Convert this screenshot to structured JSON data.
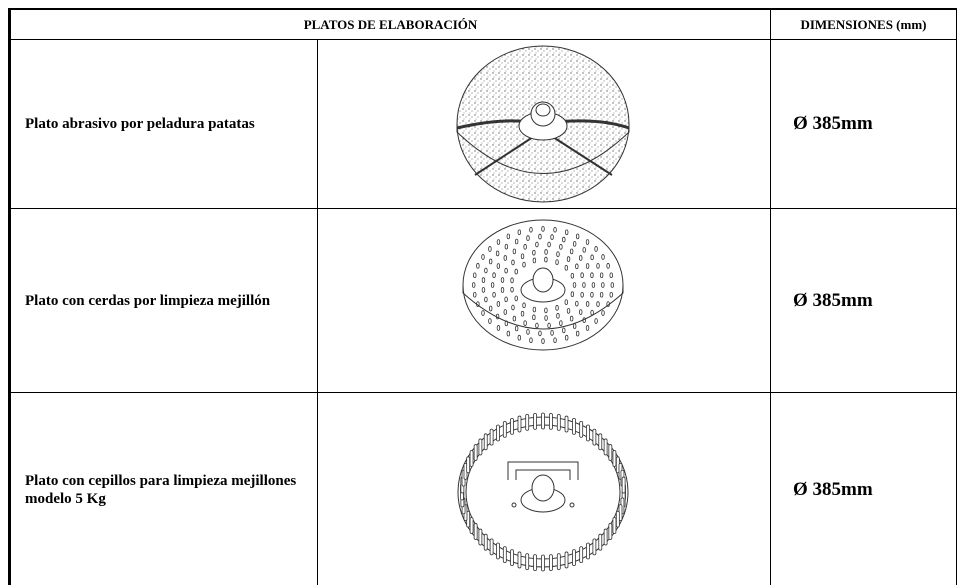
{
  "table": {
    "header": [
      "PLATOS DE ELABORACIÓN",
      "DIMENSIONES (mm)"
    ],
    "rows": [
      {
        "label": "Plato abrasivo por peladura patatas",
        "dimension": "Ø 385mm"
      },
      {
        "label": "Plato con cerdas por limpieza mejillón",
        "dimension": "Ø 385mm"
      },
      {
        "label": "Plato con cepillos para limpieza mejillones modelo 5 Kg",
        "dimension": "Ø 385mm"
      }
    ]
  }
}
